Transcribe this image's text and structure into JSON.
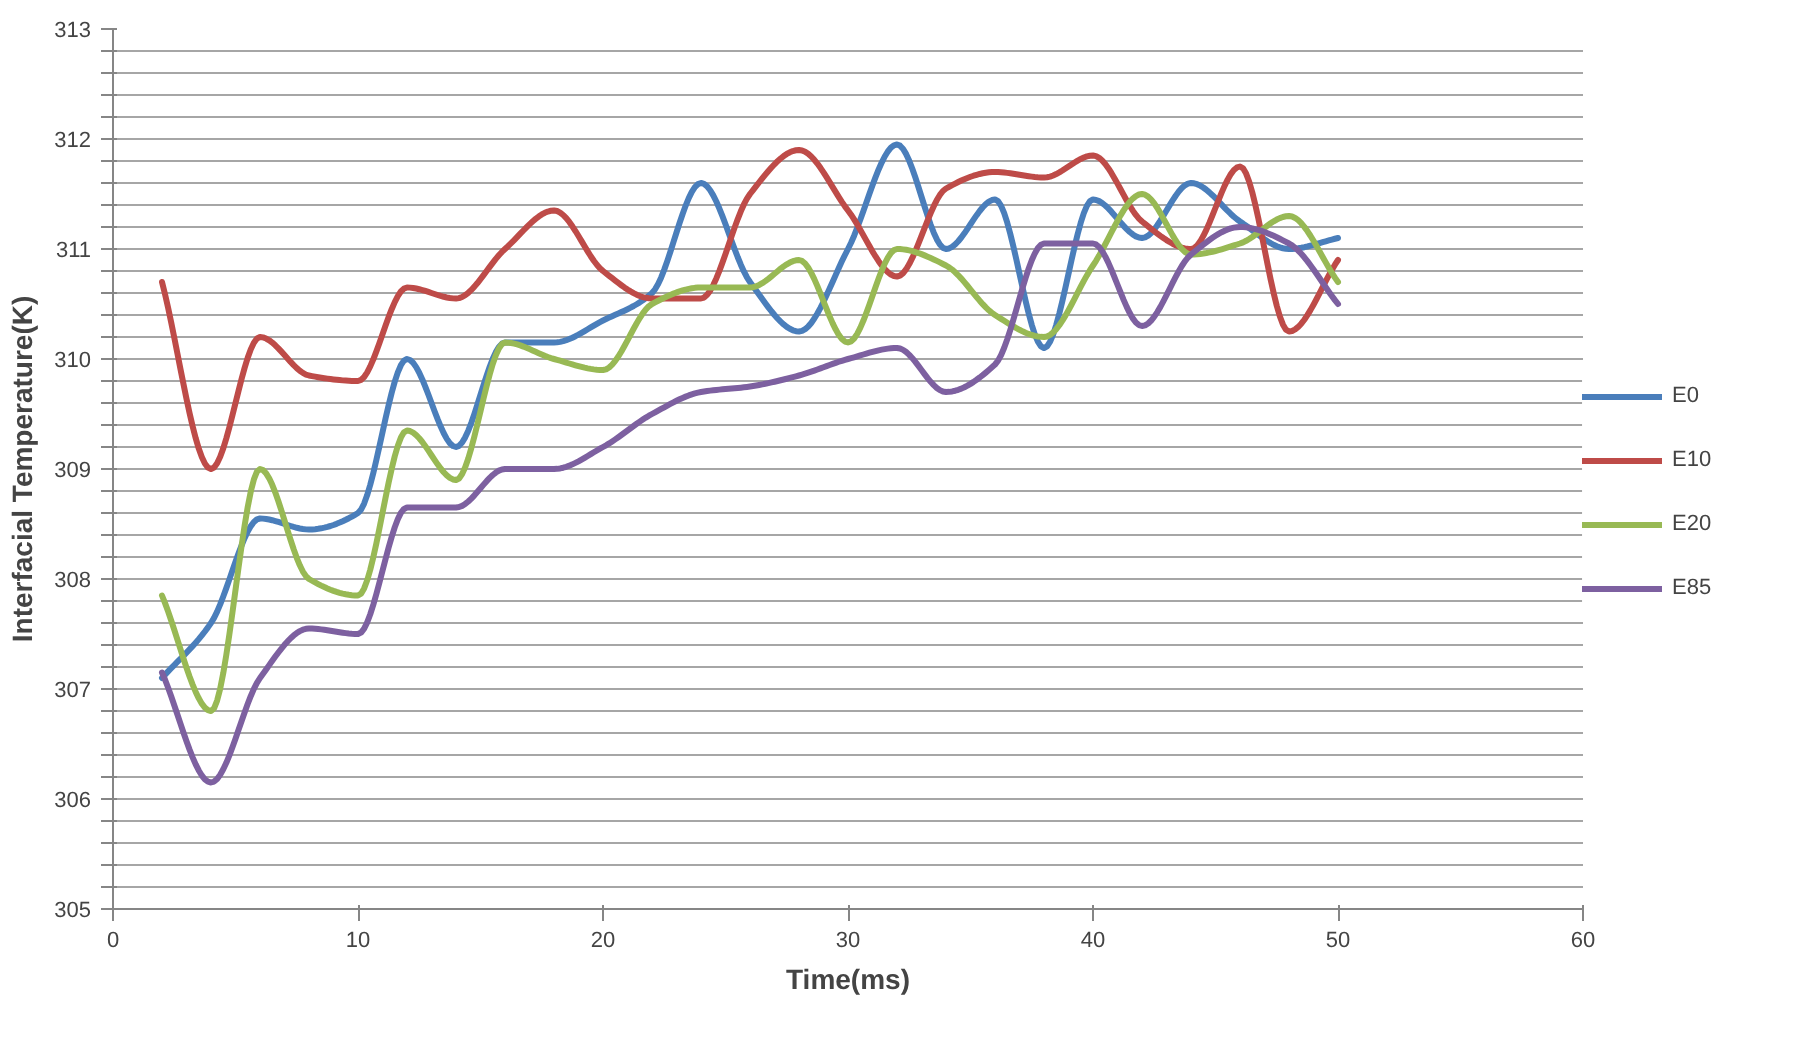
{
  "chart_data": {
    "type": "line",
    "xlabel": "Time(ms)",
    "ylabel": "Interfacial Temperature(K)",
    "x": [
      2,
      4,
      6,
      8,
      10,
      12,
      14,
      16,
      18,
      20,
      22,
      24,
      26,
      28,
      30,
      32,
      34,
      36,
      38,
      40,
      42,
      44,
      46,
      48,
      50
    ],
    "series": [
      {
        "name": "E0",
        "color": "#4a7ebb",
        "values": [
          307.1,
          307.6,
          308.55,
          308.45,
          308.6,
          310.0,
          309.2,
          310.15,
          310.15,
          310.35,
          310.6,
          311.6,
          310.7,
          310.25,
          311.0,
          311.95,
          311.0,
          311.45,
          310.1,
          311.45,
          311.1,
          311.6,
          311.25,
          311.0,
          311.1
        ]
      },
      {
        "name": "E10",
        "color": "#be4b48",
        "values": [
          310.7,
          309.0,
          310.2,
          309.85,
          309.8,
          310.65,
          310.55,
          311.0,
          311.35,
          310.8,
          310.55,
          310.55,
          311.5,
          311.9,
          311.35,
          310.75,
          311.55,
          311.7,
          311.65,
          311.85,
          311.25,
          311.0,
          311.75,
          310.25,
          310.9
        ]
      },
      {
        "name": "E20",
        "color": "#98b954",
        "values": [
          307.85,
          306.8,
          309.0,
          308.0,
          307.85,
          309.35,
          308.9,
          310.15,
          310.0,
          309.9,
          310.5,
          310.65,
          310.65,
          310.9,
          310.15,
          311.0,
          310.85,
          310.4,
          310.2,
          310.85,
          311.5,
          310.95,
          311.05,
          311.3,
          310.7
        ]
      },
      {
        "name": "E85",
        "color": "#7d60a0",
        "values": [
          307.15,
          306.15,
          307.1,
          307.55,
          307.5,
          308.65,
          308.65,
          309.0,
          309.0,
          309.2,
          309.5,
          309.7,
          309.75,
          309.85,
          310.0,
          310.1,
          309.7,
          309.95,
          311.05,
          311.05,
          310.3,
          310.95,
          311.2,
          311.05,
          310.5
        ]
      }
    ],
    "xlim": [
      0,
      60
    ],
    "xticks": [
      0,
      10,
      20,
      30,
      40,
      50,
      60
    ],
    "ylim": [
      305,
      313
    ],
    "yticks": [
      305,
      {
        "value": 305.2,
        "label": null
      },
      {
        "value": 305.4,
        "label": null
      },
      {
        "value": 305.6,
        "label": null
      },
      {
        "value": 305.8,
        "label": null
      },
      306,
      {
        "value": 306.2,
        "label": null
      },
      {
        "value": 306.4,
        "label": null
      },
      {
        "value": 306.6,
        "label": null
      },
      {
        "value": 306.8,
        "label": null
      },
      307,
      {
        "value": 307.2,
        "label": null
      },
      {
        "value": 307.4,
        "label": null
      },
      {
        "value": 307.6,
        "label": null
      },
      {
        "value": 307.8,
        "label": null
      },
      308,
      {
        "value": 308.2,
        "label": null
      },
      {
        "value": 308.4,
        "label": null
      },
      {
        "value": 308.6,
        "label": null
      },
      {
        "value": 308.8,
        "label": null
      },
      309,
      {
        "value": 309.2,
        "label": null
      },
      {
        "value": 309.4,
        "label": null
      },
      {
        "value": 309.6,
        "label": null
      },
      {
        "value": 309.8,
        "label": null
      },
      310,
      {
        "value": 310.2,
        "label": null
      },
      {
        "value": 310.4,
        "label": null
      },
      {
        "value": 310.6,
        "label": null
      },
      {
        "value": 310.8,
        "label": null
      },
      311,
      {
        "value": 311.2,
        "label": null
      },
      {
        "value": 311.4,
        "label": null
      },
      {
        "value": 311.6,
        "label": null
      },
      {
        "value": 311.8,
        "label": null
      },
      312,
      {
        "value": 312.2,
        "label": null
      },
      {
        "value": 312.4,
        "label": null
      },
      {
        "value": 312.6,
        "label": null
      },
      {
        "value": 312.8,
        "label": null
      },
      313
    ],
    "grid": "y",
    "legend": "right",
    "marker": "none",
    "line_style": "solid"
  }
}
